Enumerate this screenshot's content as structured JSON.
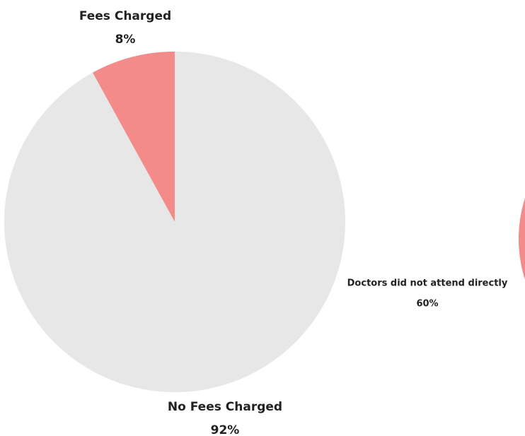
{
  "chart_data": [
    {
      "type": "pie",
      "categories": [
        "Fees Charged",
        "No Fees Charged"
      ],
      "values": [
        8,
        92
      ],
      "value_labels": [
        "8%",
        "92%"
      ],
      "colors": [
        "#f28b8a",
        "#e7e7e7"
      ]
    },
    {
      "type": "pie",
      "categories": [
        "Doctors did not attend directly"
      ],
      "values": [
        60
      ],
      "value_labels": [
        "60%"
      ],
      "colors": [
        "#f28b8a"
      ]
    }
  ]
}
